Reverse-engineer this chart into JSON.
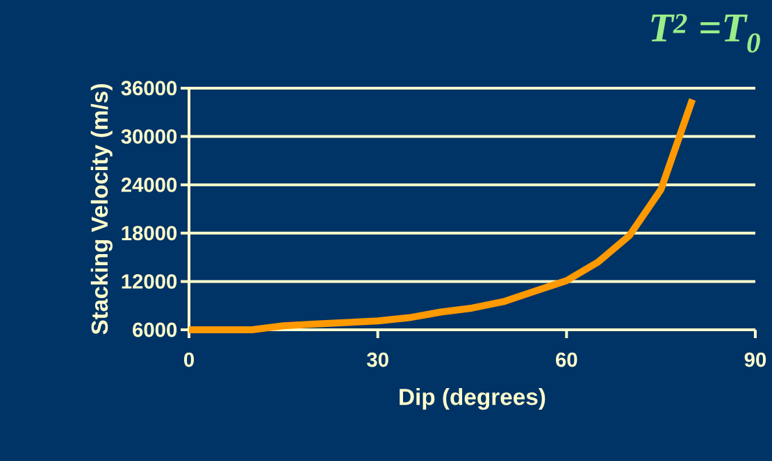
{
  "chart_data": {
    "type": "line",
    "xlabel": "Dip (degrees)",
    "ylabel": "Stacking Velocity (m/s)",
    "annotations": [
      "*T*$^{2}$ =*T*$_{0}$"
    ],
    "x": [
      0,
      5,
      10,
      15,
      20,
      25,
      30,
      35,
      40,
      45,
      50,
      55,
      60,
      65,
      70,
      75,
      80
    ],
    "series": [
      {
        "color": "#ff9900",
        "values": [
          6000,
          6000,
          6000,
          6500,
          6700,
          6900,
          7100,
          7500,
          8200,
          8700,
          9500,
          10800,
          12100,
          14400,
          17700,
          23400,
          34600
        ]
      }
    ],
    "xlim": [
      0,
      90
    ],
    "ylim": [
      6000,
      36000
    ],
    "xticks": [
      0,
      30,
      60,
      90
    ],
    "yticks": [
      6000,
      12000,
      18000,
      24000,
      30000,
      36000
    ],
    "grid": "y",
    "line_style": "solid"
  }
}
